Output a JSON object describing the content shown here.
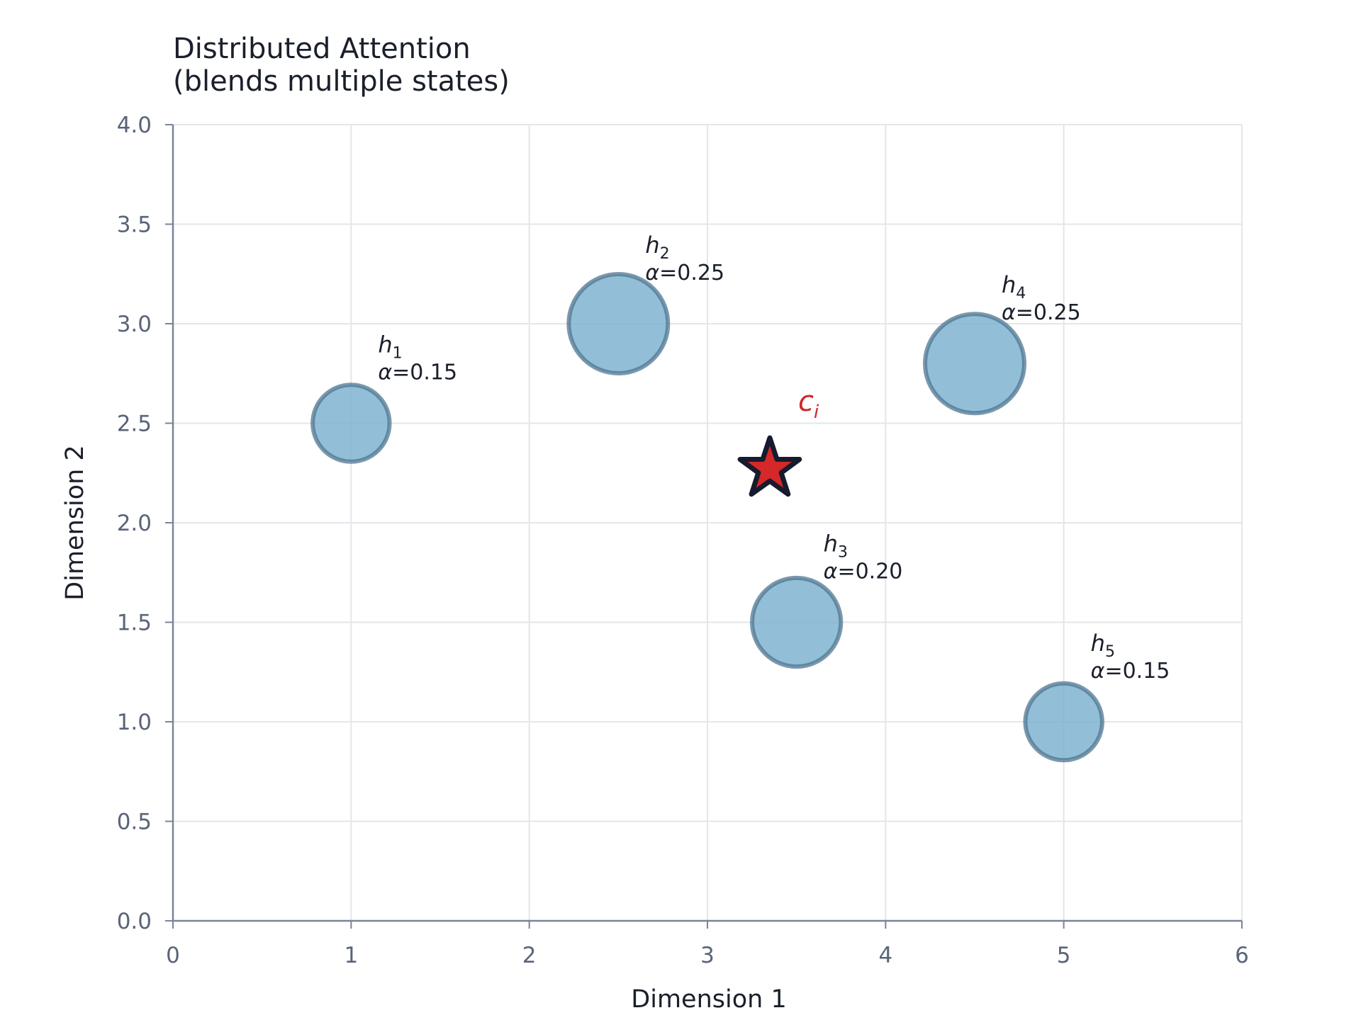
{
  "chart_data": {
    "type": "scatter",
    "title": [
      "Distributed Attention",
      "(blends multiple states)"
    ],
    "xlabel": "Dimension 1",
    "ylabel": "Dimension 2",
    "xlim": [
      0,
      6
    ],
    "ylim": [
      0,
      4
    ],
    "xticks": [
      "0",
      "1",
      "2",
      "3",
      "4",
      "5",
      "6"
    ],
    "yticks": [
      "0.0",
      "0.5",
      "1.0",
      "1.5",
      "2.0",
      "2.5",
      "3.0",
      "3.5",
      "4.0"
    ],
    "grid": true,
    "points": [
      {
        "label": "h",
        "sub": "1",
        "alpha_label": "α",
        "weight_text": "=0.15",
        "x": 1.0,
        "y": 2.5,
        "weight": 0.15
      },
      {
        "label": "h",
        "sub": "2",
        "alpha_label": "α",
        "weight_text": "=0.25",
        "x": 2.5,
        "y": 3.0,
        "weight": 0.25
      },
      {
        "label": "h",
        "sub": "3",
        "alpha_label": "α",
        "weight_text": "=0.20",
        "x": 3.5,
        "y": 1.5,
        "weight": 0.2
      },
      {
        "label": "h",
        "sub": "4",
        "alpha_label": "α",
        "weight_text": "=0.25",
        "x": 4.5,
        "y": 2.8,
        "weight": 0.25
      },
      {
        "label": "h",
        "sub": "5",
        "alpha_label": "α",
        "weight_text": "=0.15",
        "x": 5.0,
        "y": 1.0,
        "weight": 0.15
      }
    ],
    "context_vector": {
      "label": "c",
      "sub": "i",
      "x": 3.35,
      "y": 2.27,
      "marker": "star"
    },
    "colors": {
      "point_fill": "#7fb3d0",
      "point_edge": "#4f7590",
      "star_fill": "#d62828",
      "star_edge": "#161b2e",
      "context_label": "#cc2a2a",
      "grid": "#e3e6ea",
      "axis": "#7a8497"
    }
  }
}
